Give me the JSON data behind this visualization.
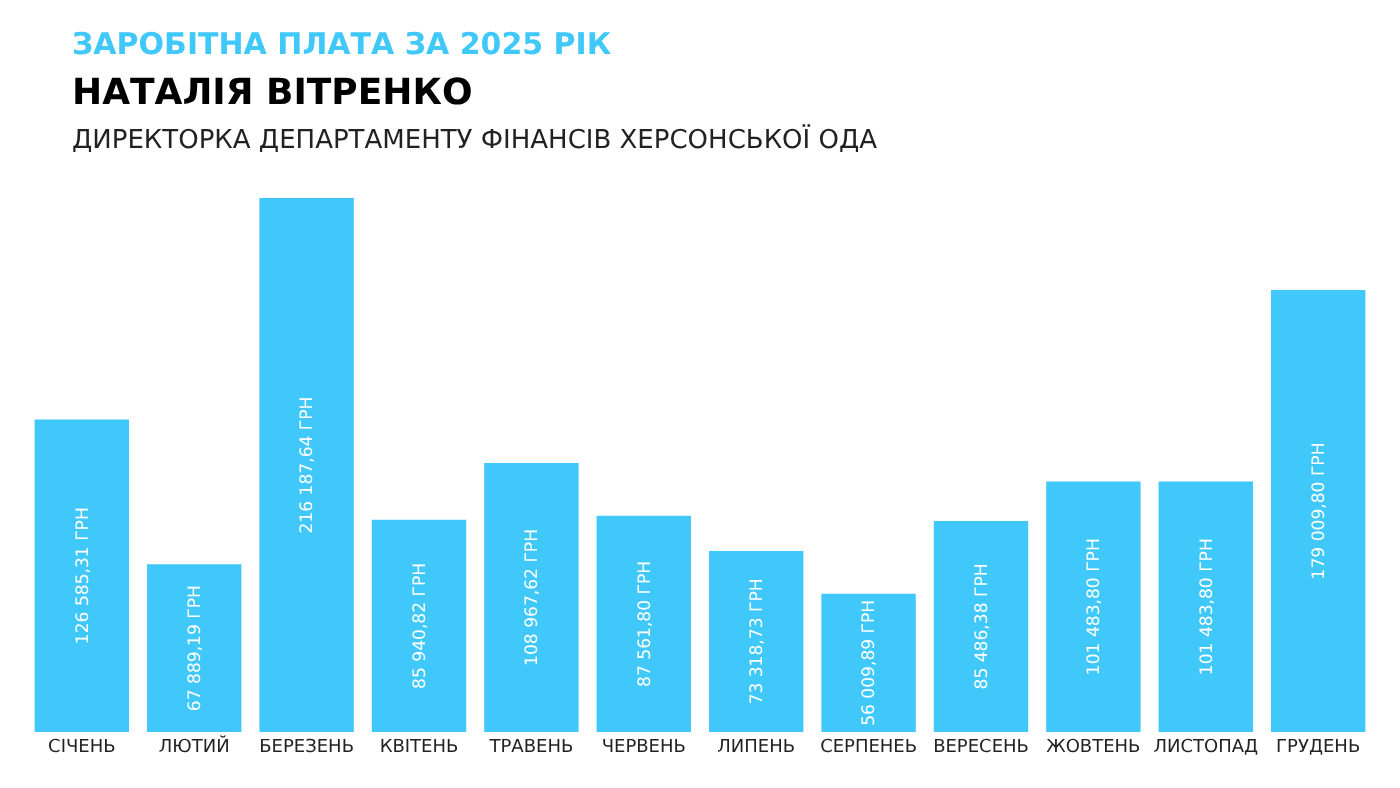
{
  "chart_data": {
    "type": "bar",
    "title": "ЗАРОБІТНА ПЛАТА ЗА 2025 РІК",
    "subtitle": "НАТАЛІЯ ВІТРЕНКО",
    "annotations": [
      "ДИРЕКТОРКА ДЕПАРТАМЕНТУ ФІНАНСІВ ХЕРСОНСЬКОЇ ОДА"
    ],
    "categories": [
      "СІЧЕНЬ",
      "ЛЮТИЙ",
      "БЕРЕЗЕНЬ",
      "КВІТЕНЬ",
      "ТРАВЕНЬ",
      "ЧЕРВЕНЬ",
      "ЛИПЕНЬ",
      "СЕРПЕНЕЬ",
      "ВЕРЕСЕНЬ",
      "ЖОВТЕНЬ",
      "ЛИСТОПАД",
      "ГРУДЕНЬ"
    ],
    "values": [
      126585.31,
      67889.19,
      216187.64,
      85940.82,
      108967.62,
      87561.8,
      73318.73,
      56009.89,
      85486.38,
      101483.8,
      101483.8,
      179009.8
    ],
    "value_labels": [
      "126 585,31 ГРН",
      "67 889,19 ГРН",
      "216 187,64 ГРН",
      "85 940,82 ГРН",
      "108 967,62 ГРН",
      "87 561,80 ГРН",
      "73 318,73 ГРН",
      "56 009,89 ГРН",
      "85 486,38 ГРН",
      "101 483,80 ГРН",
      "101 483,80 ГРН",
      "179 009,80 ГРН"
    ],
    "color": "#40c8fa",
    "legend": false
  }
}
